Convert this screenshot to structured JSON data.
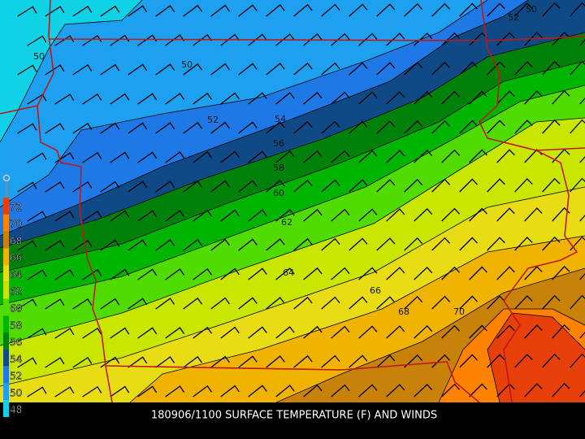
{
  "title": "180906/1100 SURFACE TEMPERATURE (F) AND WINDS",
  "legend": {
    "levels": [
      {
        "label": "72",
        "color": "#e8400a"
      },
      {
        "label": "70",
        "color": "#ff8200"
      },
      {
        "label": "68",
        "color": "#c8820a"
      },
      {
        "label": "66",
        "color": "#f0b400"
      },
      {
        "label": "64",
        "color": "#e8dc14"
      },
      {
        "label": "62",
        "color": "#c8e600"
      },
      {
        "label": "60",
        "color": "#50dc00"
      },
      {
        "label": "58",
        "color": "#00b400"
      },
      {
        "label": "56",
        "color": "#00820a"
      },
      {
        "label": "54",
        "color": "#104a86"
      },
      {
        "label": "52",
        "color": "#1e78e6"
      },
      {
        "label": "50",
        "color": "#1ea0f0"
      },
      {
        "label": "48",
        "color": "#10d2e6"
      }
    ]
  },
  "contour_labels": [
    "50",
    "50",
    "52",
    "54",
    "56",
    "58",
    "60",
    "62",
    "64",
    "66",
    "68",
    "70",
    "52",
    "50"
  ]
}
